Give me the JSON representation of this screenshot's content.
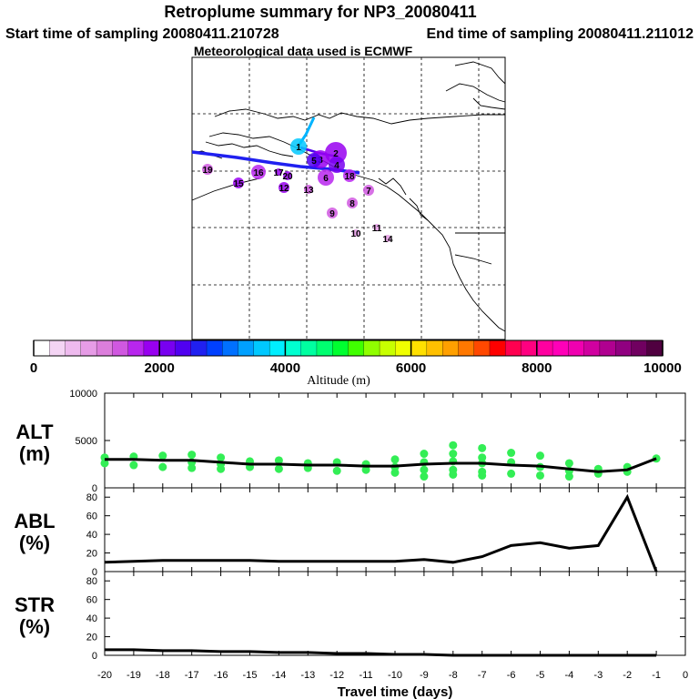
{
  "titles": {
    "line1": "Retroplume summary for NP3_20080411",
    "line2_start": "Start time of sampling 20080411.210728",
    "line2_end": "End time of sampling 20080411.211012",
    "line3": "Meteorological data used is ECMWF"
  },
  "colorbar": {
    "label": "Altitude (m)",
    "ticks": [
      "0",
      "2000",
      "4000",
      "6000",
      "8000",
      "10000"
    ],
    "range": [
      0,
      10000
    ],
    "colors": [
      "#ffffff",
      "#f4d4f4",
      "#eebaee",
      "#e69ce6",
      "#dc7edc",
      "#d058e0",
      "#b826ee",
      "#9800f0",
      "#7800f0",
      "#5000f0",
      "#2020f0",
      "#0040ff",
      "#0070ff",
      "#00a0ff",
      "#00c8ff",
      "#00eeff",
      "#00ffd0",
      "#00ffa0",
      "#00ff70",
      "#00ff30",
      "#40ff00",
      "#90ff00",
      "#c8ff00",
      "#f0ff00",
      "#ffe000",
      "#ffc000",
      "#ffa000",
      "#ff7800",
      "#ff4800",
      "#ff0000",
      "#ff0050",
      "#ff0080",
      "#ff00a0",
      "#ff00b8",
      "#f000b0",
      "#d000a0",
      "#b00090",
      "#900080",
      "#700060",
      "#500040"
    ]
  },
  "map": {
    "markers": [
      {
        "label": "1",
        "color": "#00c8ff"
      },
      {
        "label": "2",
        "color": "#9800f0"
      },
      {
        "label": "3",
        "color": "#9800f0"
      },
      {
        "label": "4",
        "color": "#7800f0"
      },
      {
        "label": "5",
        "color": "#5000f0"
      },
      {
        "label": "6",
        "color": "#b826ee"
      },
      {
        "label": "7",
        "color": "#d058e0"
      },
      {
        "label": "8",
        "color": "#d058e0"
      },
      {
        "label": "9",
        "color": "#d058e0"
      },
      {
        "label": "10",
        "color": "#e69ce6"
      },
      {
        "label": "11",
        "color": "#e69ce6"
      },
      {
        "label": "12",
        "color": "#9800f0"
      },
      {
        "label": "13",
        "color": "#d058e0"
      },
      {
        "label": "14",
        "color": "#e69ce6"
      },
      {
        "label": "15",
        "color": "#9800f0"
      },
      {
        "label": "16",
        "color": "#b826ee"
      },
      {
        "label": "17",
        "color": "#9800f0"
      },
      {
        "label": "18",
        "color": "#b826ee"
      },
      {
        "label": "19",
        "color": "#d058e0"
      },
      {
        "label": "20",
        "color": "#9800f0"
      }
    ]
  },
  "chart_data": [
    {
      "type": "scatter",
      "panel_label_1": "ALT",
      "panel_label_2": "(m)",
      "x": [
        -20,
        -19,
        -18,
        -17,
        -16,
        -15,
        -14,
        -13,
        -12,
        -11,
        -10,
        -9,
        -8,
        -7,
        -6,
        -5,
        -4,
        -3,
        -2,
        -1
      ],
      "mean_line": [
        3000,
        3000,
        2900,
        2900,
        2700,
        2500,
        2500,
        2400,
        2400,
        2300,
        2300,
        2500,
        2600,
        2600,
        2400,
        2300,
        2000,
        1700,
        1900,
        3100
      ],
      "scatter_points": [
        [
          -20,
          3200
        ],
        [
          -20,
          2600
        ],
        [
          -19,
          3300
        ],
        [
          -19,
          2400
        ],
        [
          -18,
          3400
        ],
        [
          -18,
          2200
        ],
        [
          -17,
          3500
        ],
        [
          -17,
          2700
        ],
        [
          -17,
          2100
        ],
        [
          -16,
          3200
        ],
        [
          -16,
          2500
        ],
        [
          -16,
          2000
        ],
        [
          -15,
          2800
        ],
        [
          -15,
          2200
        ],
        [
          -14,
          2900
        ],
        [
          -14,
          2000
        ],
        [
          -13,
          2600
        ],
        [
          -13,
          2100
        ],
        [
          -12,
          2700
        ],
        [
          -12,
          1800
        ],
        [
          -11,
          2500
        ],
        [
          -11,
          1900
        ],
        [
          -10,
          3000
        ],
        [
          -10,
          2200
        ],
        [
          -10,
          1600
        ],
        [
          -9,
          3600
        ],
        [
          -9,
          2700
        ],
        [
          -9,
          1900
        ],
        [
          -9,
          1200
        ],
        [
          -8,
          4500
        ],
        [
          -8,
          3600
        ],
        [
          -8,
          2800
        ],
        [
          -8,
          1900
        ],
        [
          -8,
          1400
        ],
        [
          -7,
          4200
        ],
        [
          -7,
          3200
        ],
        [
          -7,
          2600
        ],
        [
          -7,
          1700
        ],
        [
          -7,
          1300
        ],
        [
          -6,
          3700
        ],
        [
          -6,
          2700
        ],
        [
          -6,
          1500
        ],
        [
          -5,
          3400
        ],
        [
          -5,
          2200
        ],
        [
          -5,
          1300
        ],
        [
          -4,
          2600
        ],
        [
          -4,
          1800
        ],
        [
          -4,
          1200
        ],
        [
          -3,
          2000
        ],
        [
          -3,
          1500
        ],
        [
          -2,
          2200
        ],
        [
          -2,
          1700
        ],
        [
          -1,
          3100
        ]
      ],
      "xlim": [
        -20,
        0
      ],
      "ylim": [
        0,
        10000
      ],
      "y_ticks": [
        "0",
        "5000",
        "10000"
      ]
    },
    {
      "type": "line",
      "panel_label_1": "ABL",
      "panel_label_2": "(%)",
      "x": [
        -20,
        -19,
        -18,
        -17,
        -16,
        -15,
        -14,
        -13,
        -12,
        -11,
        -10,
        -9,
        -8,
        -7,
        -6,
        -5,
        -4,
        -3,
        -2,
        -1
      ],
      "values": [
        10,
        11,
        12,
        12,
        12,
        12,
        11,
        11,
        11,
        11,
        11,
        13,
        10,
        16,
        28,
        31,
        25,
        28,
        80,
        0
      ],
      "xlim": [
        -20,
        0
      ],
      "ylim": [
        0,
        90
      ],
      "y_ticks": [
        "0",
        "20",
        "40",
        "60",
        "80"
      ]
    },
    {
      "type": "line",
      "panel_label_1": "STR",
      "panel_label_2": "(%)",
      "x": [
        -20,
        -19,
        -18,
        -17,
        -16,
        -15,
        -14,
        -13,
        -12,
        -11,
        -10,
        -9,
        -8,
        -7,
        -6,
        -5,
        -4,
        -3,
        -2,
        -1
      ],
      "values": [
        6,
        6,
        5,
        5,
        4,
        4,
        3,
        3,
        2,
        2,
        1,
        1,
        0,
        0,
        0,
        0,
        0,
        0,
        0,
        0
      ],
      "xlim": [
        -20,
        0
      ],
      "ylim": [
        0,
        90
      ],
      "y_ticks": [
        "0",
        "20",
        "40",
        "60",
        "80"
      ],
      "x_ticks": [
        "-20",
        "-19",
        "-18",
        "-17",
        "-16",
        "-15",
        "-14",
        "-13",
        "-12",
        "-11",
        "-10",
        "-9",
        "-8",
        "-7",
        "-6",
        "-5",
        "-4",
        "-3",
        "-2",
        "-1",
        "0"
      ],
      "xlabel": "Travel time (days)"
    }
  ]
}
